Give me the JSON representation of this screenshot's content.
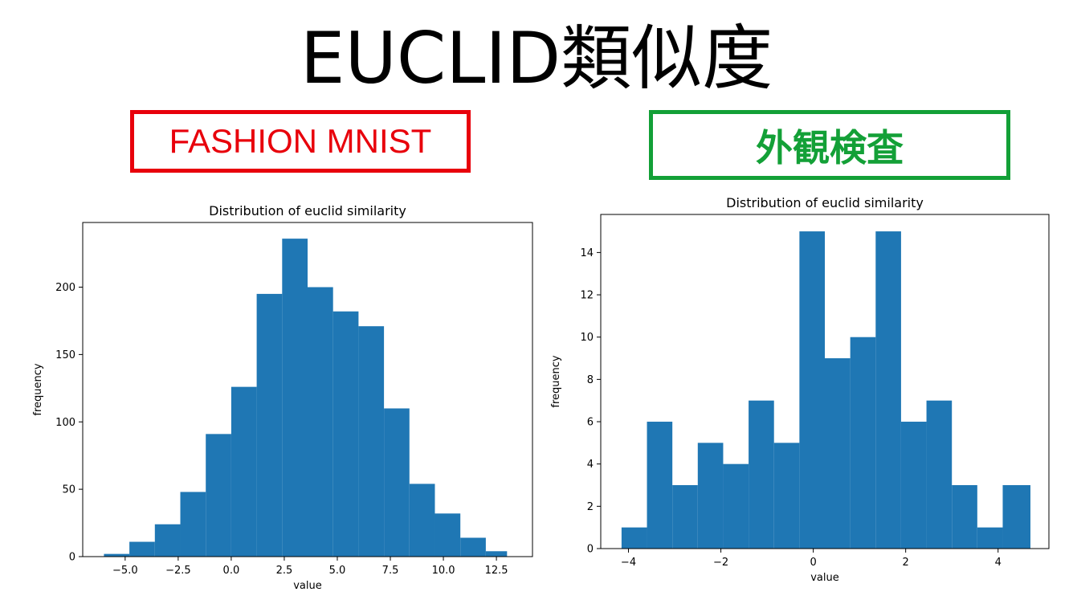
{
  "page": {
    "title": "EUCLID類似度",
    "left_label": "FASHION MNIST",
    "right_label": "外観検査",
    "left_color": "#e8000b",
    "right_color": "#13a037",
    "bar_color": "#1f77b4"
  },
  "chart_data": [
    {
      "type": "bar",
      "title": "Distribution of euclid similarity",
      "xlabel": "value",
      "ylabel": "frequency",
      "bin_edges": [
        -6.0,
        -4.8,
        -3.6,
        -2.4,
        -1.2,
        0.0,
        1.2,
        2.4,
        3.6,
        4.8,
        6.0,
        7.2,
        8.4,
        9.6,
        10.8,
        12.0,
        13.0
      ],
      "values": [
        2,
        11,
        24,
        48,
        91,
        126,
        195,
        236,
        200,
        182,
        171,
        110,
        54,
        32,
        14,
        4
      ],
      "xlim": [
        -7.0,
        14.2
      ],
      "ylim": [
        0,
        248
      ],
      "xticks": [
        -5.0,
        -2.5,
        0.0,
        2.5,
        5.0,
        7.5,
        10.0,
        12.5
      ],
      "xtick_labels": [
        "−5.0",
        "−2.5",
        "0.0",
        "2.5",
        "5.0",
        "7.5",
        "10.0",
        "12.5"
      ],
      "yticks": [
        0,
        50,
        100,
        150,
        200
      ],
      "ytick_labels": [
        "0",
        "50",
        "100",
        "150",
        "200"
      ],
      "grid": false
    },
    {
      "type": "bar",
      "title": "Distribution of euclid similarity",
      "xlabel": "value",
      "ylabel": "frequency",
      "bin_edges": [
        -4.15,
        -3.6,
        -3.05,
        -2.5,
        -1.95,
        -1.4,
        -0.85,
        -0.3,
        0.25,
        0.8,
        1.35,
        1.9,
        2.45,
        3.0,
        3.55,
        4.1,
        4.7
      ],
      "values": [
        1,
        6,
        3,
        5,
        4,
        7,
        5,
        15,
        9,
        10,
        15,
        6,
        7,
        3,
        1,
        3
      ],
      "xlim": [
        -4.6,
        5.1
      ],
      "ylim": [
        0,
        15.8
      ],
      "xticks": [
        -4,
        -2,
        0,
        2,
        4
      ],
      "xtick_labels": [
        "−4",
        "−2",
        "0",
        "2",
        "4"
      ],
      "yticks": [
        0,
        2,
        4,
        6,
        8,
        10,
        12,
        14
      ],
      "ytick_labels": [
        "0",
        "2",
        "4",
        "6",
        "8",
        "10",
        "12",
        "14"
      ],
      "grid": false
    }
  ]
}
